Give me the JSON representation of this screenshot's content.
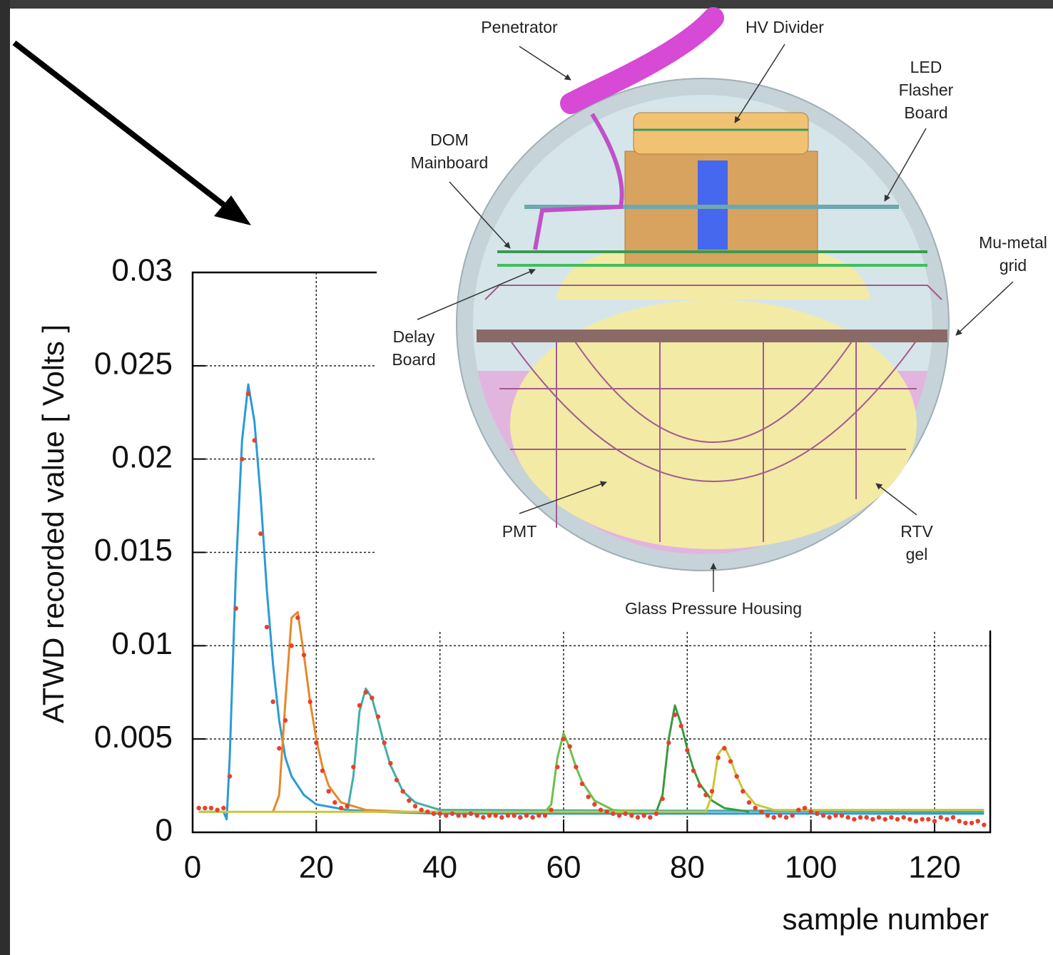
{
  "chart_data": {
    "type": "line",
    "y_label": "ATWD recorded value [ Volts ]",
    "x_label": "sample number",
    "xlim": [
      0,
      129
    ],
    "xticks": [
      0,
      20,
      40,
      60,
      80,
      100,
      120
    ],
    "ylim": [
      0,
      0.03
    ],
    "yticks": [
      0,
      0.005,
      0.01,
      0.015,
      0.02,
      0.025,
      0.03
    ],
    "grid": true,
    "series": [
      {
        "color": "#e8402a",
        "marker": "dot",
        "x": [
          1,
          2,
          3,
          4,
          5,
          6,
          7,
          8,
          9,
          10,
          11,
          12,
          13,
          14,
          15,
          16,
          17,
          18,
          19,
          20,
          21,
          22,
          23,
          24,
          25,
          26,
          27,
          28,
          29,
          30,
          31,
          32,
          33,
          34,
          35,
          36,
          37,
          38,
          39,
          40,
          41,
          42,
          43,
          44,
          45,
          46,
          47,
          48,
          49,
          50,
          51,
          52,
          53,
          54,
          55,
          56,
          57,
          58,
          59,
          60,
          61,
          62,
          63,
          64,
          65,
          66,
          67,
          68,
          69,
          70,
          71,
          72,
          73,
          74,
          75,
          76,
          77,
          78,
          79,
          80,
          81,
          82,
          83,
          84,
          85,
          86,
          87,
          88,
          89,
          90,
          91,
          92,
          93,
          94,
          95,
          96,
          97,
          98,
          99,
          100,
          101,
          102,
          103,
          104,
          105,
          106,
          107,
          108,
          109,
          110,
          111,
          112,
          113,
          114,
          115,
          116,
          117,
          118,
          119,
          120,
          121,
          122,
          123,
          124,
          125,
          126,
          127,
          128
        ],
        "values": [
          0.0013,
          0.0013,
          0.0013,
          0.0012,
          0.0013,
          0.003,
          0.012,
          0.02,
          0.0235,
          0.021,
          0.016,
          0.011,
          0.007,
          0.0045,
          0.006,
          0.01,
          0.0115,
          0.0095,
          0.007,
          0.0048,
          0.0033,
          0.0022,
          0.0016,
          0.0013,
          0.0014,
          0.0035,
          0.0068,
          0.0075,
          0.0072,
          0.0062,
          0.0048,
          0.0037,
          0.0028,
          0.0022,
          0.0017,
          0.0014,
          0.0012,
          0.0011,
          0.001,
          0.001,
          0.0009,
          0.001,
          0.0009,
          0.0009,
          0.001,
          0.0009,
          0.0008,
          0.0009,
          0.0009,
          0.0008,
          0.0009,
          0.0009,
          0.0008,
          0.0009,
          0.0008,
          0.0009,
          0.0009,
          0.0012,
          0.0035,
          0.005,
          0.0046,
          0.0035,
          0.0026,
          0.0019,
          0.0015,
          0.0012,
          0.0011,
          0.001,
          0.0009,
          0.001,
          0.0009,
          0.0008,
          0.0009,
          0.0008,
          0.001,
          0.0018,
          0.0048,
          0.0063,
          0.0057,
          0.0044,
          0.0033,
          0.0025,
          0.002,
          0.0022,
          0.004,
          0.0045,
          0.0038,
          0.003,
          0.0022,
          0.0016,
          0.0013,
          0.0011,
          0.0009,
          0.0008,
          0.0009,
          0.0008,
          0.0009,
          0.0012,
          0.0013,
          0.0011,
          0.001,
          0.0009,
          0.0008,
          0.0009,
          0.0009,
          0.0008,
          0.0007,
          0.0008,
          0.0008,
          0.0007,
          0.0008,
          0.0007,
          0.0008,
          0.0007,
          0.0008,
          0.0007,
          0.0006,
          0.0007,
          0.0007,
          0.0006,
          0.0008,
          0.0007,
          0.0008,
          0.0006,
          0.0005,
          0.0005,
          0.0006,
          0.0004
        ]
      },
      {
        "color": "#2a9ad8",
        "marker": "line",
        "x": [
          1,
          5,
          5.5,
          6,
          7,
          8,
          9,
          10,
          11,
          12,
          13,
          14,
          15,
          16,
          18,
          20,
          25,
          30,
          40,
          60,
          128
        ],
        "values": [
          0.0011,
          0.0011,
          0.0007,
          0.004,
          0.014,
          0.021,
          0.024,
          0.022,
          0.018,
          0.013,
          0.009,
          0.006,
          0.004,
          0.003,
          0.002,
          0.0015,
          0.0012,
          0.0011,
          0.001,
          0.001,
          0.001
        ]
      },
      {
        "color": "#e8872a",
        "marker": "line",
        "x": [
          13,
          14,
          15,
          16,
          17,
          18,
          19,
          20,
          21,
          22,
          24,
          28,
          35,
          128
        ],
        "values": [
          0.0011,
          0.002,
          0.007,
          0.0115,
          0.0118,
          0.0095,
          0.007,
          0.005,
          0.0035,
          0.0025,
          0.0016,
          0.0012,
          0.0011,
          0.0012
        ]
      },
      {
        "color": "#3fb0a8",
        "marker": "line",
        "x": [
          25,
          26,
          27,
          28,
          29,
          30,
          31,
          32,
          34,
          36,
          40,
          128
        ],
        "values": [
          0.0011,
          0.003,
          0.0065,
          0.0077,
          0.0072,
          0.006,
          0.0047,
          0.0036,
          0.0022,
          0.0016,
          0.0012,
          0.0011
        ]
      },
      {
        "color": "#6cc04a",
        "marker": "line",
        "x": [
          57,
          58,
          59,
          60,
          61,
          62,
          63,
          65,
          68,
          72
        ],
        "values": [
          0.0011,
          0.0015,
          0.004,
          0.0053,
          0.0045,
          0.0035,
          0.0027,
          0.0017,
          0.0012,
          0.0011
        ]
      },
      {
        "color": "#3a9a40",
        "marker": "line",
        "x": [
          75,
          76,
          77,
          78,
          79,
          80,
          81,
          82,
          84,
          86,
          90
        ],
        "values": [
          0.0011,
          0.002,
          0.005,
          0.0068,
          0.0058,
          0.0045,
          0.0034,
          0.0026,
          0.0017,
          0.0013,
          0.0011
        ]
      },
      {
        "color": "#c8c83a",
        "marker": "line",
        "x": [
          1,
          83,
          84,
          85,
          86,
          87,
          88,
          89,
          91,
          94,
          128
        ],
        "values": [
          0.0011,
          0.0011,
          0.002,
          0.0042,
          0.0046,
          0.0039,
          0.003,
          0.0023,
          0.0015,
          0.0012,
          0.0012
        ]
      }
    ]
  },
  "diagram": {
    "labels": [
      {
        "lines": [
          "Penetrator"
        ]
      },
      {
        "lines": [
          "HV Divider"
        ]
      },
      {
        "lines": [
          "LED",
          "Flasher",
          "Board"
        ]
      },
      {
        "lines": [
          "DOM",
          "Mainboard"
        ]
      },
      {
        "lines": [
          "Mu-metal",
          "grid"
        ]
      },
      {
        "lines": [
          "Delay",
          "Board"
        ]
      },
      {
        "lines": [
          "PMT"
        ]
      },
      {
        "lines": [
          "RTV",
          "gel"
        ]
      },
      {
        "lines": [
          "Glass Pressure Housing"
        ]
      }
    ]
  }
}
